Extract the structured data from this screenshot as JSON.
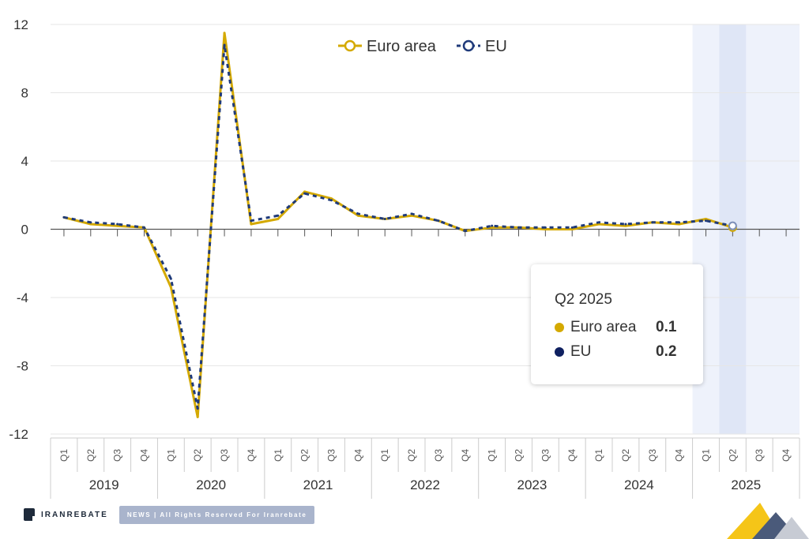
{
  "chart_data": {
    "type": "line",
    "title": "",
    "xlabel": "",
    "ylabel": "",
    "ylim": [
      -12,
      12
    ],
    "yticks": [
      12,
      8,
      4,
      0,
      -4,
      -8,
      -12
    ],
    "grid": true,
    "legend_position": "top-center",
    "years": [
      "2019",
      "2020",
      "2021",
      "2022",
      "2023",
      "2024",
      "2025"
    ],
    "quarter_labels": [
      "Q1",
      "Q2",
      "Q3",
      "Q4"
    ],
    "highlight_band": [
      "Q1 2025",
      "Q4 2025"
    ],
    "highlight_point": "Q2 2025",
    "x": [
      "Q1 2019",
      "Q2 2019",
      "Q3 2019",
      "Q4 2019",
      "Q1 2020",
      "Q2 2020",
      "Q3 2020",
      "Q4 2020",
      "Q1 2021",
      "Q2 2021",
      "Q3 2021",
      "Q4 2021",
      "Q1 2022",
      "Q2 2022",
      "Q3 2022",
      "Q4 2022",
      "Q1 2023",
      "Q2 2023",
      "Q3 2023",
      "Q4 2023",
      "Q1 2024",
      "Q2 2024",
      "Q3 2024",
      "Q4 2024",
      "Q1 2025",
      "Q2 2025"
    ],
    "series": [
      {
        "name": "Euro area",
        "color": "#d4a900",
        "values": [
          0.7,
          0.3,
          0.2,
          0.1,
          -3.4,
          -11.0,
          11.5,
          0.3,
          0.6,
          2.2,
          1.8,
          0.8,
          0.6,
          0.8,
          0.5,
          -0.1,
          0.1,
          0.1,
          0.0,
          0.0,
          0.3,
          0.2,
          0.4,
          0.3,
          0.6,
          0.1
        ]
      },
      {
        "name": "EU",
        "color": "#1f3a7a",
        "values": [
          0.7,
          0.4,
          0.3,
          0.1,
          -2.9,
          -10.5,
          10.8,
          0.5,
          0.8,
          2.1,
          1.7,
          0.9,
          0.6,
          0.9,
          0.5,
          -0.1,
          0.2,
          0.1,
          0.1,
          0.1,
          0.4,
          0.3,
          0.4,
          0.4,
          0.5,
          0.2
        ]
      }
    ]
  },
  "tooltip": {
    "title": "Q2 2025",
    "rows": [
      {
        "name": "Euro area",
        "value": "0.1",
        "color": "#d4a900"
      },
      {
        "name": "EU",
        "value": "0.2",
        "color": "#0f2060"
      }
    ]
  },
  "footer": {
    "brand": "IRANREBATE",
    "banner": "NEWS | All Rights Reserved For Iranrebate"
  }
}
